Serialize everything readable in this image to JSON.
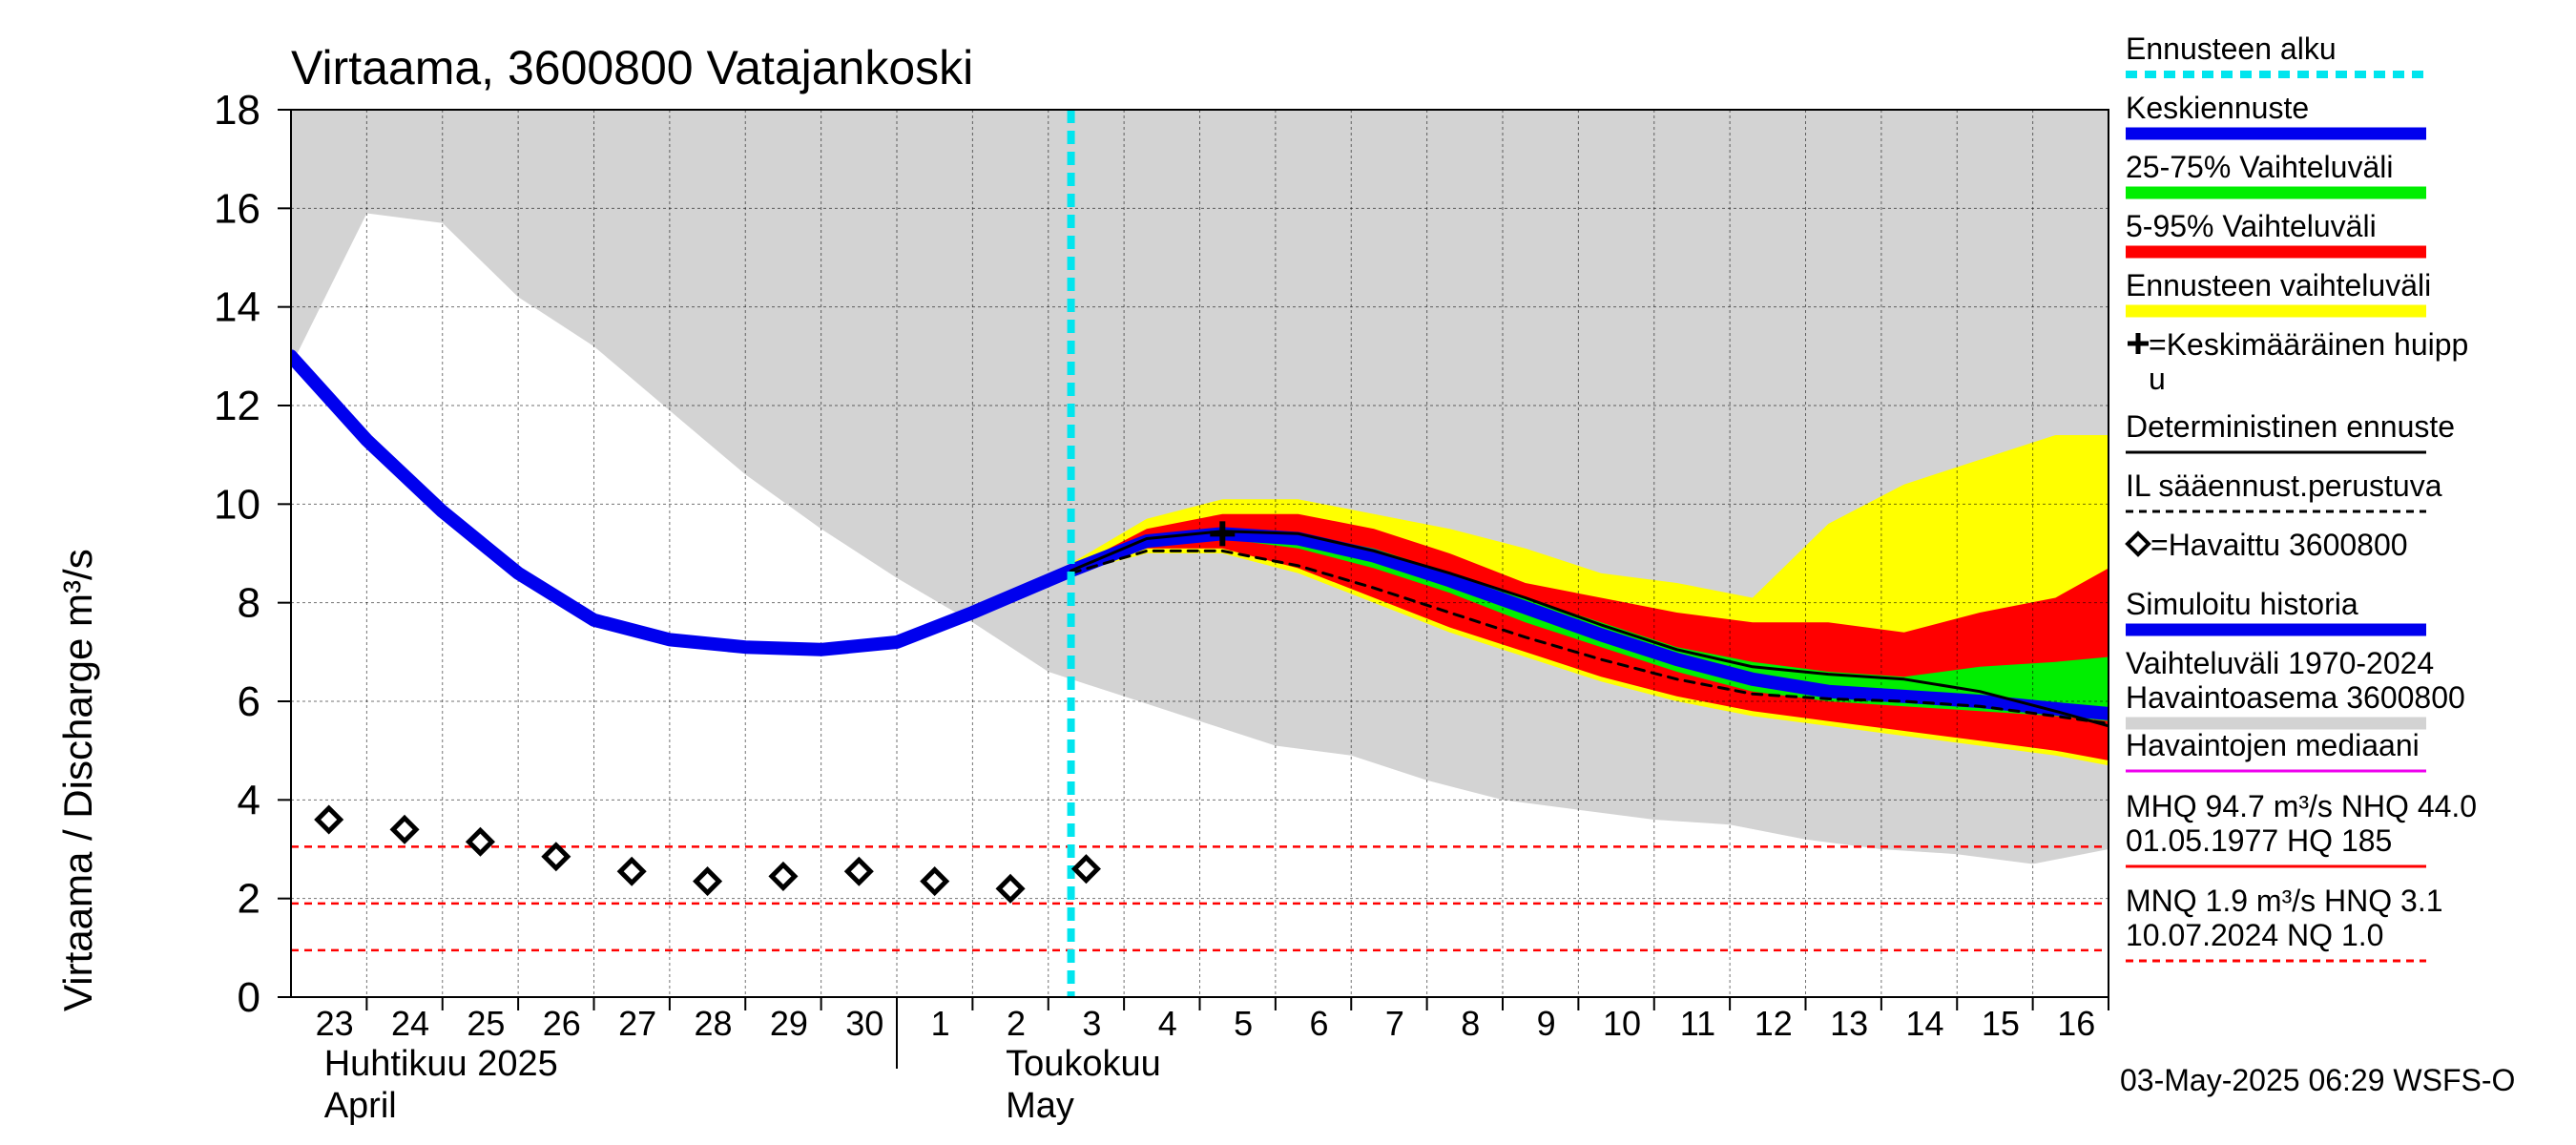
{
  "chart_data": {
    "type": "area",
    "title": "Virtaama, 3600800 Vatajankoski",
    "ylabel": "Virtaama / Discharge   m³/s",
    "ylim": [
      0,
      18
    ],
    "yticks": [
      0,
      2,
      4,
      6,
      8,
      10,
      12,
      14,
      16,
      18
    ],
    "x_day_range": [
      -0.5,
      23.5
    ],
    "x_tick_labels": [
      "23",
      "24",
      "25",
      "26",
      "27",
      "28",
      "29",
      "30",
      "1",
      "2",
      "3",
      "4",
      "5",
      "6",
      "7",
      "8",
      "9",
      "10",
      "11",
      "12",
      "13",
      "14",
      "15",
      "16"
    ],
    "month_labels": [
      {
        "line1": "Huhtikuu  2025",
        "line2": "April",
        "day": 0
      },
      {
        "line1": "Toukokuu",
        "line2": "May",
        "day": 9
      }
    ],
    "month_divider_day": 7.5,
    "forecast_start_day": 9.8,
    "history_band": {
      "days": [
        -0.5,
        0.5,
        1.5,
        2.5,
        3.5,
        4.5,
        5.5,
        6.5,
        7.5,
        8.5,
        9.5,
        10.5,
        11.5,
        12.5,
        13.5,
        14.5,
        15.5,
        16.5,
        17.5,
        18.5,
        19.5,
        20.5,
        21.5,
        22.5,
        23.5
      ],
      "upper": [
        18,
        18,
        18,
        18,
        18,
        18,
        18,
        18,
        18,
        18,
        18,
        18,
        18,
        18,
        18,
        18,
        18,
        18,
        18,
        18,
        18,
        18,
        18,
        18,
        18
      ],
      "lower": [
        12.8,
        15.9,
        15.7,
        14.2,
        13.2,
        11.9,
        10.6,
        9.5,
        8.5,
        7.6,
        6.6,
        6.1,
        5.6,
        5.1,
        4.9,
        4.4,
        4.0,
        3.8,
        3.6,
        3.5,
        3.2,
        3.0,
        2.9,
        2.7,
        3.0
      ]
    },
    "forecast_days": [
      9.8,
      10.8,
      11.8,
      12.8,
      13.8,
      14.8,
      15.8,
      16.8,
      17.8,
      18.8,
      19.8,
      20.8,
      21.8,
      22.8,
      23.5
    ],
    "bands": [
      {
        "name": "Ennusteen vaihteluväli",
        "color": "#ffff00",
        "upper": [
          8.8,
          9.7,
          10.1,
          10.1,
          9.8,
          9.5,
          9.1,
          8.6,
          8.4,
          8.1,
          9.6,
          10.4,
          10.9,
          11.4,
          11.4
        ],
        "lower": [
          8.6,
          9.0,
          9.0,
          8.6,
          8.0,
          7.4,
          6.9,
          6.4,
          6.0,
          5.7,
          5.5,
          5.3,
          5.1,
          4.9,
          4.7
        ]
      },
      {
        "name": "5-95% Vaihteluväli",
        "color": "#ff0000",
        "upper": [
          8.7,
          9.5,
          9.8,
          9.8,
          9.5,
          9.0,
          8.4,
          8.1,
          7.8,
          7.6,
          7.6,
          7.4,
          7.8,
          8.1,
          8.7
        ],
        "lower": [
          8.6,
          9.1,
          9.1,
          8.7,
          8.1,
          7.5,
          7.0,
          6.5,
          6.1,
          5.8,
          5.6,
          5.4,
          5.2,
          5.0,
          4.8
        ]
      },
      {
        "name": "25-75% Vaihteluväli",
        "color": "#00ee00",
        "upper": [
          8.7,
          9.3,
          9.5,
          9.4,
          9.1,
          8.6,
          8.1,
          7.6,
          7.1,
          6.8,
          6.6,
          6.5,
          6.7,
          6.8,
          6.9
        ],
        "lower": [
          8.6,
          9.2,
          9.3,
          9.1,
          8.7,
          8.2,
          7.6,
          7.1,
          6.6,
          6.2,
          6.0,
          5.9,
          5.8,
          5.7,
          5.6
        ]
      }
    ],
    "lines": [
      {
        "name": "Simuloitu historia",
        "color": "#0000ee",
        "width": 14,
        "days": [
          -0.5,
          0.5,
          1.5,
          2.5,
          3.5,
          4.5,
          5.5,
          6.5,
          7.5,
          8.5,
          9.8
        ],
        "values": [
          13.0,
          11.3,
          9.85,
          8.6,
          7.65,
          7.25,
          7.1,
          7.05,
          7.2,
          7.8,
          8.65
        ]
      },
      {
        "name": "Keskiennuste",
        "color": "#0000ee",
        "width": 14,
        "days": [
          9.8,
          10.8,
          11.8,
          12.8,
          13.8,
          14.8,
          15.8,
          16.8,
          17.8,
          18.8,
          19.8,
          20.8,
          21.8,
          22.8,
          23.5
        ],
        "values": [
          8.65,
          9.25,
          9.4,
          9.3,
          8.95,
          8.45,
          7.9,
          7.35,
          6.85,
          6.45,
          6.2,
          6.1,
          6.0,
          5.85,
          5.75
        ]
      },
      {
        "name": "Deterministinen ennuste",
        "color": "#000000",
        "width": 3,
        "days": [
          9.8,
          10.8,
          11.8,
          12.8,
          13.8,
          14.8,
          15.8,
          16.8,
          17.8,
          18.8,
          19.8,
          20.8,
          21.8,
          22.8,
          23.5
        ],
        "values": [
          8.65,
          9.3,
          9.45,
          9.4,
          9.05,
          8.6,
          8.1,
          7.55,
          7.05,
          6.7,
          6.55,
          6.45,
          6.2,
          5.8,
          5.5
        ]
      },
      {
        "name": "IL sääennust.perustuva",
        "color": "#000000",
        "width": 3,
        "dash": "10,8",
        "days": [
          9.8,
          10.8,
          11.8,
          12.8,
          13.8,
          14.8,
          15.8,
          16.8,
          17.8,
          18.8,
          19.8,
          20.8,
          21.8,
          22.8,
          23.5
        ],
        "values": [
          8.6,
          9.05,
          9.05,
          8.75,
          8.3,
          7.8,
          7.3,
          6.85,
          6.45,
          6.15,
          6.05,
          6.0,
          5.9,
          5.7,
          5.55
        ]
      }
    ],
    "observed": {
      "name": "Havaittu 3600800",
      "days": [
        0,
        1,
        2,
        3,
        4,
        5,
        6,
        7,
        8,
        9,
        10
      ],
      "values": [
        3.6,
        3.4,
        3.15,
        2.85,
        2.55,
        2.35,
        2.45,
        2.55,
        2.35,
        2.2,
        2.6
      ]
    },
    "mean_peak": {
      "day": 11.8,
      "value": 9.4
    },
    "ref_lines": [
      {
        "value": 3.05,
        "color": "#ff0000"
      },
      {
        "value": 1.9,
        "color": "#ff0000"
      },
      {
        "value": 0.95,
        "color": "#ff0000"
      }
    ],
    "legend_placement": "right",
    "grid": true
  },
  "legend": {
    "items": [
      {
        "lines": [
          "Ennusteen alku"
        ],
        "color": "#00e5ee",
        "style": "dotted"
      },
      {
        "lines": [
          "Keskiennuste"
        ],
        "color": "#0000ee",
        "style": "thick"
      },
      {
        "lines": [
          "25-75% Vaihteluväli"
        ],
        "color": "#00ee00",
        "style": "thick"
      },
      {
        "lines": [
          "5-95% Vaihteluväli"
        ],
        "color": "#ff0000",
        "style": "thick"
      },
      {
        "lines": [
          "Ennusteen vaihteluväli"
        ],
        "color": "#ffff00",
        "style": "thick"
      },
      {
        "lines": [
          "=Keskimääräinen huipp",
          "u"
        ],
        "color": "",
        "style": "none",
        "marker": "plus"
      },
      {
        "lines": [
          "Deterministinen ennuste"
        ],
        "color": "#000000",
        "style": "thin"
      },
      {
        "lines": [
          "IL sääennust.perustuva"
        ],
        "color": "#000000",
        "style": "dashed"
      },
      {
        "lines": [
          "=Havaittu 3600800"
        ],
        "color": "",
        "style": "none",
        "marker": "diamond"
      },
      {
        "lines": [
          "Simuloitu historia"
        ],
        "color": "#0000ee",
        "style": "thick"
      },
      {
        "lines": [
          "Vaihteluväli 1970-2024",
          " Havaintoasema 3600800"
        ],
        "color": "#d3d3d3",
        "style": "thick"
      },
      {
        "lines": [
          "Havaintojen mediaani"
        ],
        "color": "#ee00ee",
        "style": "thin"
      },
      {
        "lines": [
          "MHQ 94.7 m³/s NHQ 44.0",
          "01.05.1977 HQ  185"
        ],
        "color": "#ff0000",
        "style": "thin"
      },
      {
        "lines": [
          "MNQ  1.9 m³/s HNQ  3.1",
          "10.07.2024 NQ  1.0"
        ],
        "color": "#ff0000",
        "style": "dashed"
      }
    ]
  },
  "footer": "03-May-2025 06:29 WSFS-O"
}
